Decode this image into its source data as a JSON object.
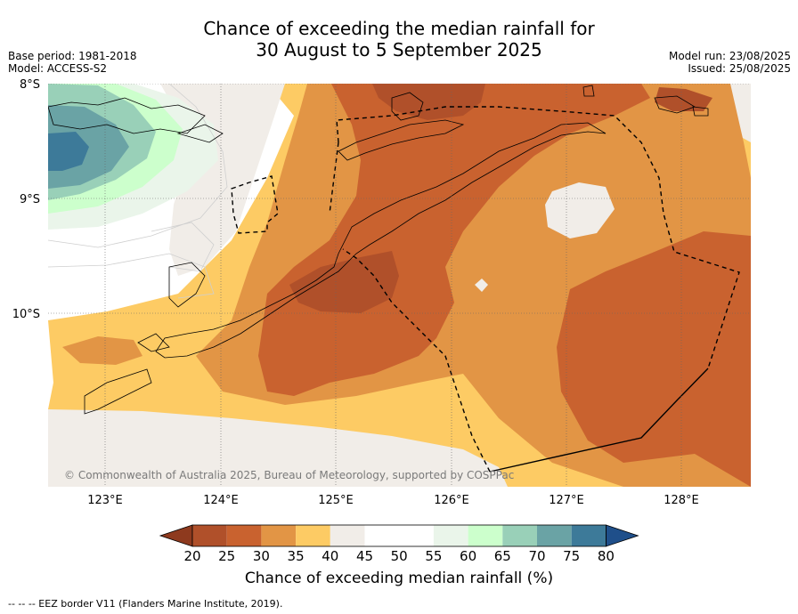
{
  "title_line1": "Chance of exceeding the median rainfall for",
  "title_line2": "30 August to 5 September 2025",
  "base_period": "Base period: 1981-2018",
  "model": "Model: ACCESS-S2",
  "model_run": "Model run: 23/08/2025",
  "issued": "Issued: 25/08/2025",
  "copyright": "© Commonwealth of Australia 2025, Bureau of Meteorology, supported by COSPPac",
  "lat_labels": [
    "8°S",
    "9°S",
    "10°S"
  ],
  "lon_labels": [
    "123°E",
    "124°E",
    "125°E",
    "126°E",
    "127°E",
    "128°E"
  ],
  "colorbar": {
    "title": "Chance of exceeding median rainfall (%)",
    "ticks": [
      "20",
      "25",
      "30",
      "35",
      "40",
      "45",
      "50",
      "55",
      "60",
      "65",
      "70",
      "75",
      "80"
    ],
    "colors": [
      "#8e3a1e",
      "#b0502a",
      "#c9622f",
      "#e29545",
      "#fdcb64",
      "#f1ede8",
      "#ffffff",
      "#ffffff",
      "#eaf5ea",
      "#ccffcc",
      "#99d0b8",
      "#6aa3a5",
      "#3d7a99",
      "#1f4f8a"
    ]
  },
  "footer": "--  --  -- EEZ border V11 (Flanders Marine Institute, 2019).",
  "chart_data": {
    "type": "map",
    "extent_lon": [
      122.5,
      128.6
    ],
    "extent_lat": [
      -11.5,
      -8.0
    ],
    "gridlines": true,
    "legend_placement": "bottom"
  }
}
